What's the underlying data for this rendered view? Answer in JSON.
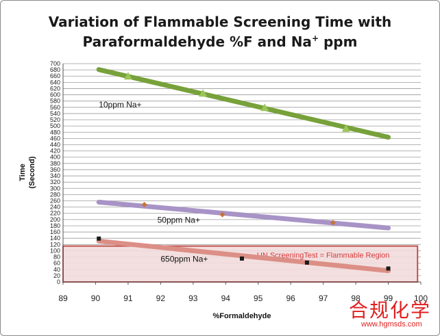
{
  "chart_data": {
    "type": "line",
    "title_line1": "Variation of Flammable Screening Time with",
    "title_line2_prefix": "Paraformaldehyde %F and Na",
    "title_line2_sup": "+",
    "title_line2_suffix": " ppm",
    "xlabel": "%Formaldehyde",
    "ylabel_line1": "Time",
    "ylabel_line2": "(Second)",
    "xlim": [
      89,
      100
    ],
    "ylim": [
      0,
      700
    ],
    "x_ticks": [
      89,
      90,
      91,
      92,
      93,
      94,
      95,
      96,
      97,
      98,
      99,
      100
    ],
    "y_ticks": [
      0,
      20,
      40,
      60,
      80,
      100,
      120,
      140,
      160,
      180,
      200,
      220,
      240,
      260,
      280,
      300,
      320,
      340,
      360,
      380,
      400,
      420,
      440,
      460,
      480,
      500,
      520,
      540,
      560,
      580,
      600,
      620,
      640,
      660,
      680,
      700
    ],
    "grid": true,
    "series": [
      {
        "name": "10ppm Na+",
        "label": "10ppm Na+",
        "color": "#77a13a",
        "marker_color": "#9bc55a",
        "marker": "triangle",
        "fit": [
          [
            90.1,
            681
          ],
          [
            99.0,
            464
          ]
        ],
        "points": [
          [
            91,
            660
          ],
          [
            93.3,
            605
          ],
          [
            95.2,
            559
          ],
          [
            97.7,
            492
          ]
        ],
        "label_at": [
          90.1,
          560
        ]
      },
      {
        "name": "50ppm Na+",
        "label": "50ppm Na+",
        "color": "#a893c6",
        "marker_color": "#c8733a",
        "marker": "diamond",
        "fit": [
          [
            90.1,
            256
          ],
          [
            99.0,
            173
          ]
        ],
        "points": [
          [
            91.5,
            248
          ],
          [
            93.9,
            216
          ],
          [
            97.3,
            190
          ]
        ],
        "label_at": [
          91.9,
          190
        ]
      },
      {
        "name": "650ppm Na+",
        "label": "650ppm Na+",
        "color": "#dc8f86",
        "marker_color": "#1a1a1a",
        "marker": "square",
        "fit": [
          [
            90.1,
            131
          ],
          [
            99.0,
            36
          ]
        ],
        "points": [
          [
            90.1,
            139
          ],
          [
            94.5,
            75
          ],
          [
            96.5,
            62
          ],
          [
            99.0,
            43
          ]
        ],
        "label_at": [
          92.0,
          65
        ]
      }
    ],
    "region": {
      "label": "UN  ScreeningTest = Flammable  Region",
      "x": [
        89,
        99.9
      ],
      "y": [
        0,
        115
      ],
      "fill": "#f2dcdc",
      "stroke": "#c0504d",
      "label_at": [
        97.0,
        78
      ]
    }
  },
  "watermark": {
    "cn_text": "合规化学",
    "url": "www.hgmsds.com"
  }
}
